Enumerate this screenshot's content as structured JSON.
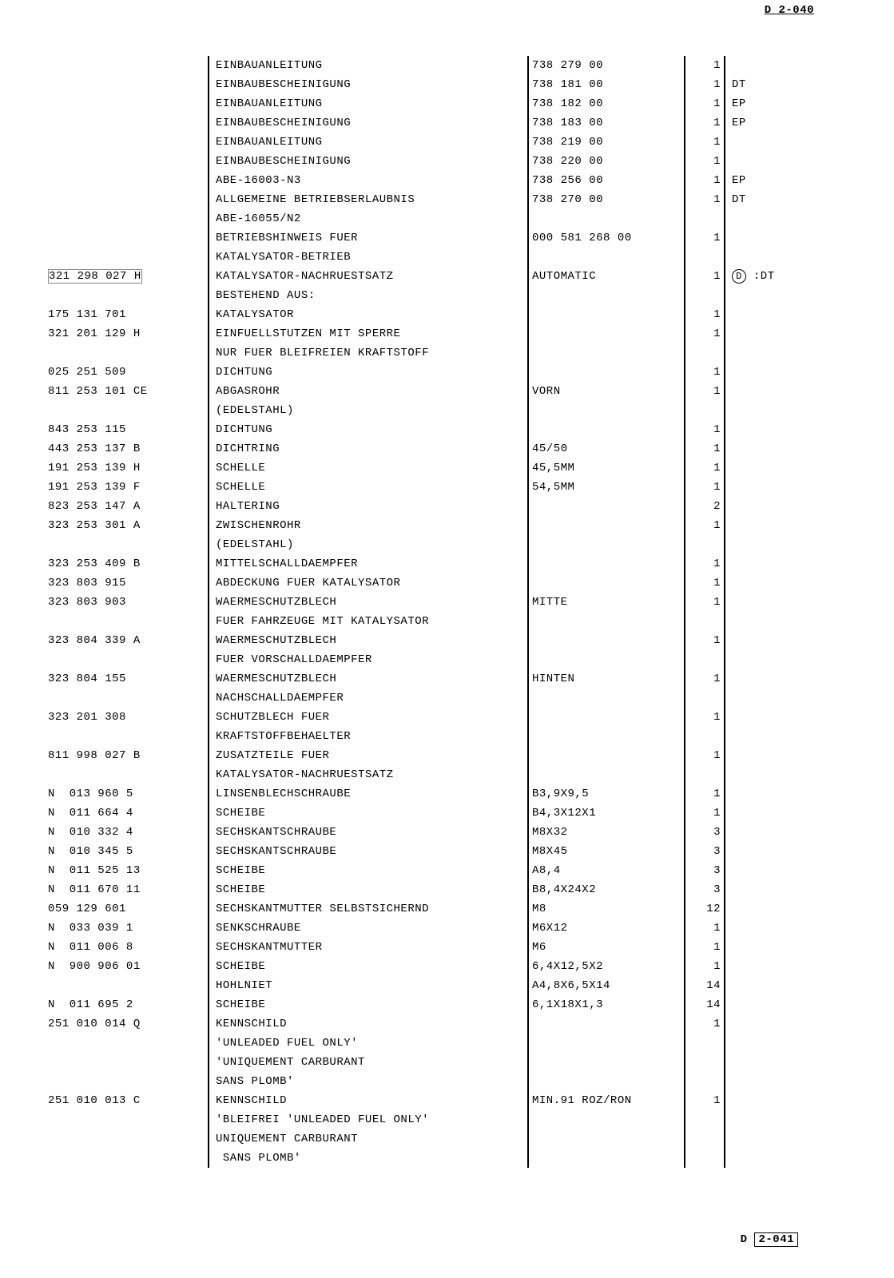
{
  "header_top_right": "D 2-040",
  "footer_label": "D",
  "footer_code": "2-041",
  "rows": [
    {
      "part": "",
      "desc": "EINBAUANLEITUNG",
      "spec": "738 279 00",
      "qty": "1",
      "rem": ""
    },
    {
      "part": "",
      "desc": "EINBAUBESCHEINIGUNG",
      "spec": "738 181 00",
      "qty": "1",
      "rem": "DT"
    },
    {
      "part": "",
      "desc": "EINBAUANLEITUNG",
      "spec": "738 182 00",
      "qty": "1",
      "rem": "EP"
    },
    {
      "part": "",
      "desc": "EINBAUBESCHEINIGUNG",
      "spec": "738 183 00",
      "qty": "1",
      "rem": "EP"
    },
    {
      "part": "",
      "desc": "EINBAUANLEITUNG",
      "spec": "738 219 00",
      "qty": "1",
      "rem": ""
    },
    {
      "part": "",
      "desc": "EINBAUBESCHEINIGUNG",
      "spec": "738 220 00",
      "qty": "1",
      "rem": ""
    },
    {
      "part": "",
      "desc": "ABE-16003-N3",
      "spec": "738 256 00",
      "qty": "1",
      "rem": "EP"
    },
    {
      "part": "",
      "desc": "ALLGEMEINE BETRIEBSERLAUBNIS",
      "spec": "738 270 00",
      "qty": "1",
      "rem": "DT"
    },
    {
      "part": "",
      "desc": "ABE-16055/N2",
      "spec": "",
      "qty": "",
      "rem": ""
    },
    {
      "part": "",
      "desc": "BETRIEBSHINWEIS FUER",
      "spec": "000 581 268 00",
      "qty": "1",
      "rem": ""
    },
    {
      "part": "",
      "desc": "KATALYSATOR-BETRIEB",
      "spec": "",
      "qty": "",
      "rem": ""
    },
    {
      "part": "",
      "desc": "",
      "spec": "",
      "qty": "",
      "rem": ""
    },
    {
      "part": "321 298 027 H",
      "desc": "KATALYSATOR-NACHRUESTSATZ",
      "spec": "AUTOMATIC",
      "qty": "1",
      "rem": "(D) :DT",
      "circled": true,
      "hl": true
    },
    {
      "part": "",
      "desc": "BESTEHEND AUS:",
      "spec": "",
      "qty": "",
      "rem": ""
    },
    {
      "part": "175 131 701",
      "desc": "KATALYSATOR",
      "spec": "",
      "qty": "1",
      "rem": ""
    },
    {
      "part": "321 201 129 H",
      "desc": "EINFUELLSTUTZEN MIT SPERRE",
      "spec": "",
      "qty": "1",
      "rem": ""
    },
    {
      "part": "",
      "desc": "NUR FUER BLEIFREIEN KRAFTSTOFF",
      "spec": "",
      "qty": "",
      "rem": ""
    },
    {
      "part": "",
      "desc": "",
      "spec": "",
      "qty": "",
      "rem": ""
    },
    {
      "part": "025 251 509",
      "desc": "DICHTUNG",
      "spec": "",
      "qty": "1",
      "rem": ""
    },
    {
      "part": "811 253 101 CE",
      "desc": "ABGASROHR",
      "spec": "VORN",
      "qty": "1",
      "rem": ""
    },
    {
      "part": "",
      "desc": "(EDELSTAHL)",
      "spec": "",
      "qty": "",
      "rem": ""
    },
    {
      "part": "843 253 115",
      "desc": "DICHTUNG",
      "spec": "",
      "qty": "1",
      "rem": ""
    },
    {
      "part": "443 253 137 B",
      "desc": "DICHTRING",
      "spec": "45/50",
      "qty": "1",
      "rem": ""
    },
    {
      "part": "191 253 139 H",
      "desc": "SCHELLE",
      "spec": "45,5MM",
      "qty": "1",
      "rem": ""
    },
    {
      "part": "191 253 139 F",
      "desc": "SCHELLE",
      "spec": "54,5MM",
      "qty": "1",
      "rem": ""
    },
    {
      "part": "823 253 147 A",
      "desc": "HALTERING",
      "spec": "",
      "qty": "2",
      "rem": ""
    },
    {
      "part": "323 253 301 A",
      "desc": "ZWISCHENROHR",
      "spec": "",
      "qty": "1",
      "rem": ""
    },
    {
      "part": "",
      "desc": "(EDELSTAHL)",
      "spec": "",
      "qty": "",
      "rem": ""
    },
    {
      "part": "323 253 409 B",
      "desc": "MITTELSCHALLDAEMPFER",
      "spec": "",
      "qty": "1",
      "rem": ""
    },
    {
      "part": "323 803 915",
      "desc": "ABDECKUNG FUER KATALYSATOR",
      "spec": "",
      "qty": "1",
      "rem": ""
    },
    {
      "part": "323 803 903",
      "desc": "WAERMESCHUTZBLECH",
      "spec": "MITTE",
      "qty": "1",
      "rem": ""
    },
    {
      "part": "",
      "desc": "FUER FAHRZEUGE MIT KATALYSATOR",
      "spec": "",
      "qty": "",
      "rem": ""
    },
    {
      "part": "323 804 339 A",
      "desc": "WAERMESCHUTZBLECH",
      "spec": "",
      "qty": "1",
      "rem": ""
    },
    {
      "part": "",
      "desc": "FUER VORSCHALLDAEMPFER",
      "spec": "",
      "qty": "",
      "rem": ""
    },
    {
      "part": "323 804 155",
      "desc": "WAERMESCHUTZBLECH",
      "spec": "HINTEN",
      "qty": "1",
      "rem": ""
    },
    {
      "part": "",
      "desc": "NACHSCHALLDAEMPFER",
      "spec": "",
      "qty": "",
      "rem": ""
    },
    {
      "part": "323 201 308",
      "desc": "SCHUTZBLECH FUER",
      "spec": "",
      "qty": "1",
      "rem": ""
    },
    {
      "part": "",
      "desc": "KRAFTSTOFFBEHAELTER",
      "spec": "",
      "qty": "",
      "rem": ""
    },
    {
      "part": "811 998 027 B",
      "desc": "ZUSATZTEILE FUER",
      "spec": "",
      "qty": "1",
      "rem": ""
    },
    {
      "part": "",
      "desc": "KATALYSATOR-NACHRUESTSATZ",
      "spec": "",
      "qty": "",
      "rem": ""
    },
    {
      "part": "N  013 960 5",
      "desc": "LINSENBLECHSCHRAUBE",
      "spec": "B3,9X9,5",
      "qty": "1",
      "rem": ""
    },
    {
      "part": "N  011 664 4",
      "desc": "SCHEIBE",
      "spec": "B4,3X12X1",
      "qty": "1",
      "rem": ""
    },
    {
      "part": "N  010 332 4",
      "desc": "SECHSKANTSCHRAUBE",
      "spec": "M8X32",
      "qty": "3",
      "rem": ""
    },
    {
      "part": "N  010 345 5",
      "desc": "SECHSKANTSCHRAUBE",
      "spec": "M8X45",
      "qty": "3",
      "rem": ""
    },
    {
      "part": "N  011 525 13",
      "desc": "SCHEIBE",
      "spec": "A8,4",
      "qty": "3",
      "rem": ""
    },
    {
      "part": "N  011 670 11",
      "desc": "SCHEIBE",
      "spec": "B8,4X24X2",
      "qty": "3",
      "rem": ""
    },
    {
      "part": "059 129 601",
      "desc": "SECHSKANTMUTTER SELBSTSICHERND",
      "spec": "M8",
      "qty": "12",
      "rem": ""
    },
    {
      "part": "N  033 039 1",
      "desc": "SENKSCHRAUBE",
      "spec": "M6X12",
      "qty": "1",
      "rem": ""
    },
    {
      "part": "N  011 006 8",
      "desc": "SECHSKANTMUTTER",
      "spec": "M6",
      "qty": "1",
      "rem": ""
    },
    {
      "part": "N  900 906 01",
      "desc": "SCHEIBE",
      "spec": "6,4X12,5X2",
      "qty": "1",
      "rem": ""
    },
    {
      "part": "",
      "desc": "HOHLNIET",
      "spec": "A4,8X6,5X14",
      "qty": "14",
      "rem": ""
    },
    {
      "part": "N  011 695 2",
      "desc": "SCHEIBE",
      "spec": "6,1X18X1,3",
      "qty": "14",
      "rem": ""
    },
    {
      "part": "251 010 014 Q",
      "desc": "KENNSCHILD",
      "spec": "",
      "qty": "1",
      "rem": ""
    },
    {
      "part": "",
      "desc": "'UNLEADED FUEL ONLY'",
      "spec": "",
      "qty": "",
      "rem": ""
    },
    {
      "part": "",
      "desc": "'UNIQUEMENT CARBURANT",
      "spec": "",
      "qty": "",
      "rem": ""
    },
    {
      "part": "",
      "desc": "SANS PLOMB'",
      "spec": "",
      "qty": "",
      "rem": ""
    },
    {
      "part": "251 010 013 C",
      "desc": "KENNSCHILD",
      "spec": "MIN.91 ROZ/RON",
      "qty": "1",
      "rem": ""
    },
    {
      "part": "",
      "desc": "'BLEIFREI 'UNLEADED FUEL ONLY'",
      "spec": "",
      "qty": "",
      "rem": ""
    },
    {
      "part": "",
      "desc": "UNIQUEMENT CARBURANT",
      "spec": "",
      "qty": "",
      "rem": ""
    },
    {
      "part": "",
      "desc": " SANS PLOMB'",
      "spec": "",
      "qty": "",
      "rem": ""
    }
  ]
}
